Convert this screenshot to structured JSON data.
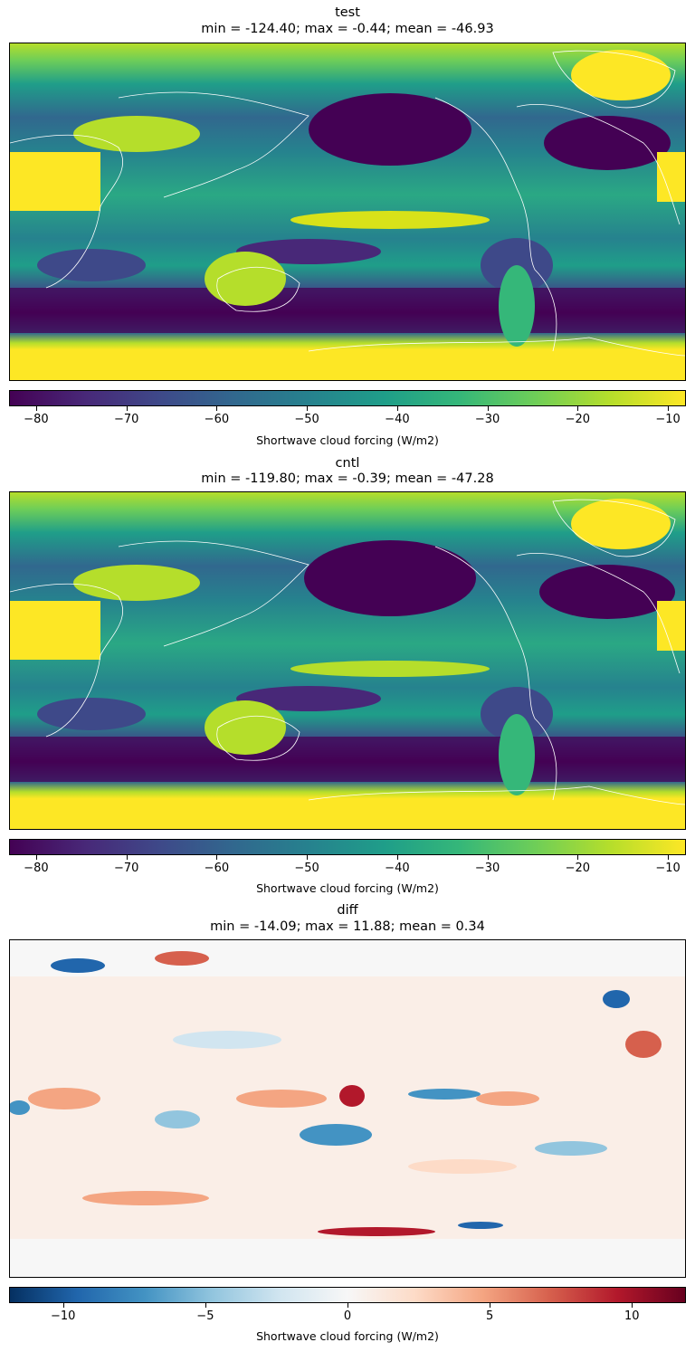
{
  "panels": [
    {
      "name": "test",
      "stats": "min = -124.40; max = -0.44; mean = -46.93",
      "colorbar_label": "Shortwave cloud forcing (W/m2)",
      "colormap": "viridis",
      "ticks": [
        "−80",
        "−70",
        "−60",
        "−50",
        "−40",
        "−30",
        "−20",
        "−10"
      ],
      "tick_values": [
        -80,
        -70,
        -60,
        -50,
        -40,
        -30,
        -20,
        -10
      ],
      "range": [
        -83,
        -8
      ]
    },
    {
      "name": "cntl",
      "stats": "min = -119.80; max = -0.39; mean = -47.28",
      "colorbar_label": "Shortwave cloud forcing (W/m2)",
      "colormap": "viridis",
      "ticks": [
        "−80",
        "−70",
        "−60",
        "−50",
        "−40",
        "−30",
        "−20",
        "−10"
      ],
      "tick_values": [
        -80,
        -70,
        -60,
        -50,
        -40,
        -30,
        -20,
        -10
      ],
      "range": [
        -83,
        -8
      ]
    },
    {
      "name": "diff",
      "stats": "min = -14.09; max = 11.88; mean = 0.34",
      "colorbar_label": "Shortwave cloud forcing (W/m2)",
      "colormap": "RdBu_r",
      "ticks": [
        "−10",
        "−5",
        "0",
        "5",
        "10"
      ],
      "tick_values": [
        -10,
        -5,
        0,
        5,
        10
      ],
      "range": [
        -11.9,
        11.9
      ]
    }
  ],
  "chart_data": {
    "type": "heatmap",
    "projection": "global lat-lon map, Pacific-centered",
    "maps": [
      {
        "title": "test",
        "min": -124.4,
        "max": -0.44,
        "mean": -46.93,
        "colorbar_range": [
          -83,
          -8
        ]
      },
      {
        "title": "cntl",
        "min": -119.8,
        "max": -0.39,
        "mean": -47.28,
        "colorbar_range": [
          -83,
          -8
        ]
      },
      {
        "title": "diff",
        "min": -14.09,
        "max": 11.88,
        "mean": 0.34,
        "colorbar_range": [
          -11.9,
          11.9
        ]
      }
    ]
  },
  "colors": {
    "viridis": [
      "#440154",
      "#482878",
      "#3e4989",
      "#31688e",
      "#26828e",
      "#1f9e89",
      "#35b779",
      "#6ece58",
      "#b5de2b",
      "#fde725"
    ],
    "rdbu_r": [
      "#053061",
      "#2166ac",
      "#4393c3",
      "#92c5de",
      "#d1e5f0",
      "#f7f7f7",
      "#fddbc7",
      "#f4a582",
      "#d6604d",
      "#b2182b",
      "#67001f"
    ],
    "coastline": "#ffffff"
  }
}
